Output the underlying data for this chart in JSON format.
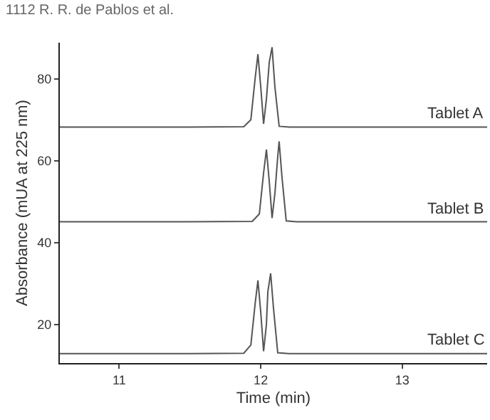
{
  "chart_data": {
    "type": "line",
    "xlabel": "Time (min)",
    "ylabel": "Absorbance (mUA at 225 nm)",
    "annotations": [
      "1112 R. R. de Pablos et al."
    ],
    "xlim": [
      10.58,
      13.6
    ],
    "xticks": [
      11,
      12,
      13
    ],
    "ylim": [
      10.6,
      88.8
    ],
    "yticks": [
      20,
      40,
      60,
      80
    ],
    "grid": false,
    "legend": false,
    "marker": "none",
    "line_style": "solid",
    "series": [
      {
        "name": "Tablet A",
        "color": "#555555",
        "x": [
          10.58,
          11.5,
          11.88,
          11.93,
          11.96,
          11.98,
          12.0,
          12.02,
          12.04,
          12.06,
          12.08,
          12.1,
          12.13,
          12.2,
          13.0,
          13.6
        ],
        "values": [
          68.2,
          68.2,
          68.3,
          70,
          80,
          86,
          78,
          69,
          75,
          84,
          87.7,
          78,
          68.4,
          68.2,
          68.2,
          68.2
        ]
      },
      {
        "name": "Tablet B",
        "color": "#555555",
        "x": [
          10.58,
          11.5,
          11.94,
          11.99,
          12.02,
          12.04,
          12.06,
          12.08,
          12.1,
          12.12,
          12.13,
          12.15,
          12.18,
          12.25,
          13.0,
          13.6
        ],
        "values": [
          45.1,
          45.1,
          45.2,
          47,
          57,
          62.7,
          55,
          46,
          52,
          61,
          64.7,
          56,
          45.3,
          45.1,
          45.1,
          45.1
        ]
      },
      {
        "name": "Tablet C",
        "color": "#555555",
        "x": [
          10.58,
          11.5,
          11.88,
          11.93,
          11.96,
          11.98,
          12.0,
          12.02,
          12.04,
          12.05,
          12.07,
          12.09,
          12.12,
          12.2,
          13.0,
          13.6
        ],
        "values": [
          12.9,
          12.9,
          13,
          15,
          25,
          30.8,
          23,
          13.5,
          20,
          28,
          32.5,
          24,
          13.1,
          12.9,
          12.9,
          12.9
        ]
      }
    ]
  }
}
